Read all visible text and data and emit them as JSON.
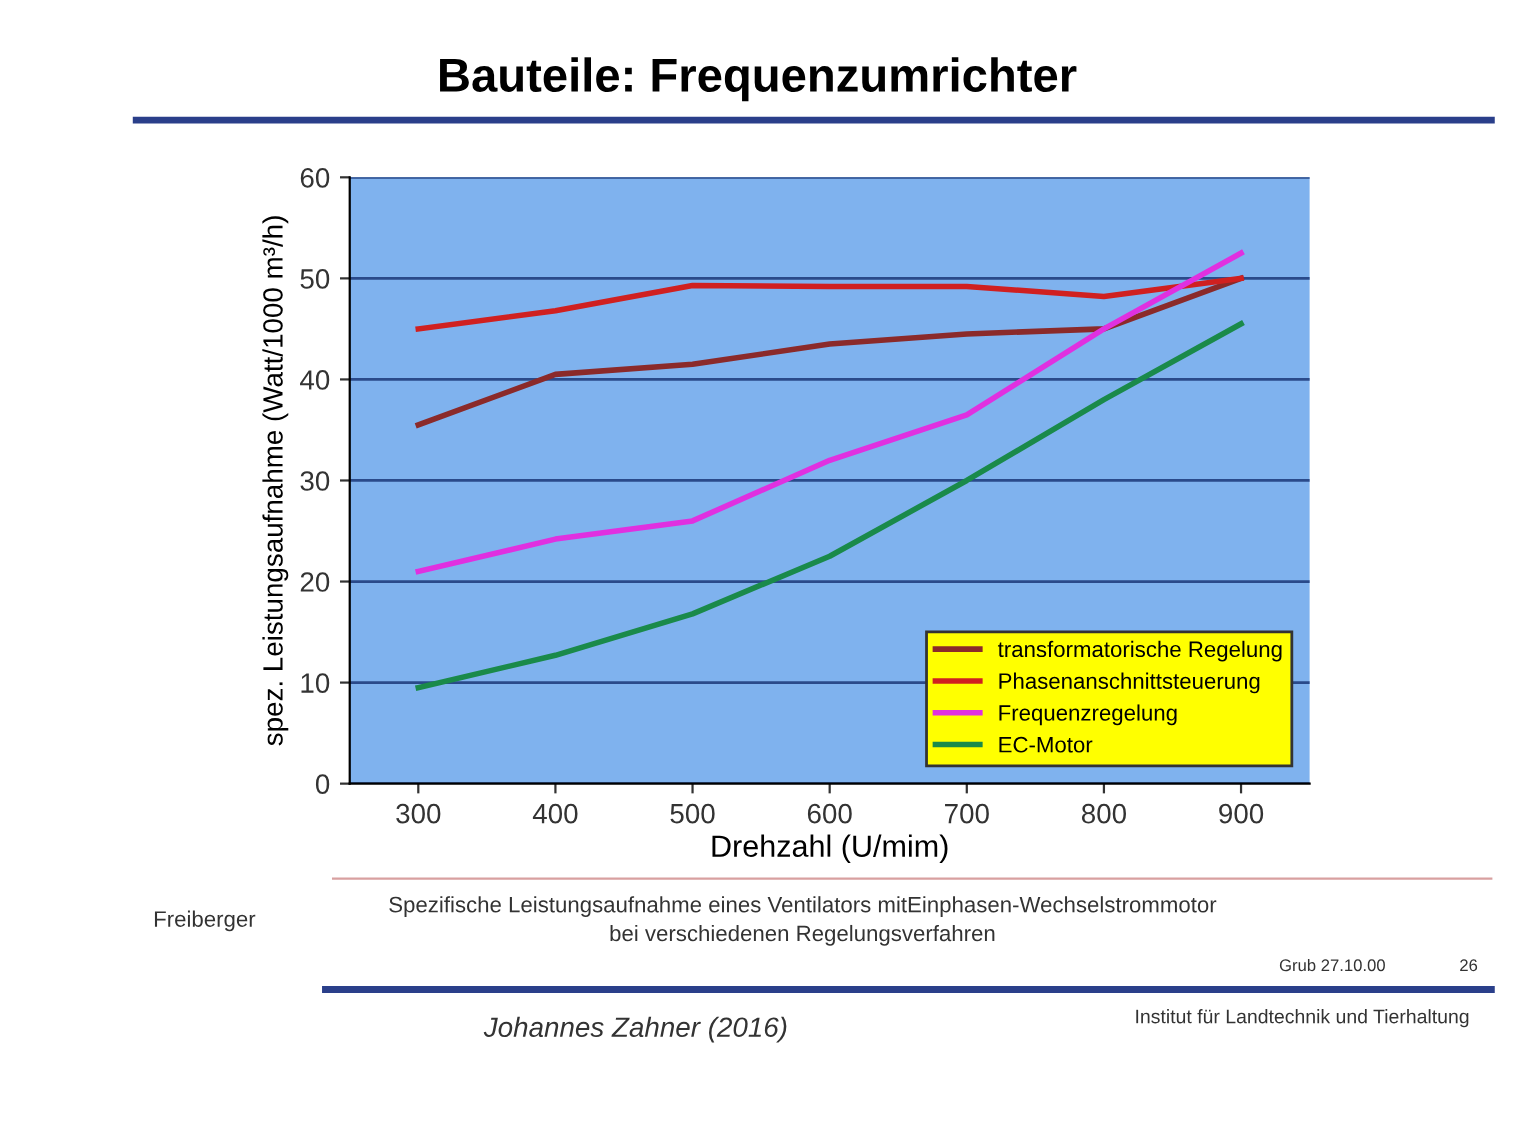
{
  "chart_data": {
    "type": "line",
    "title": "Bauteile: Frequenzumrichter",
    "xlabel": "Drehzahl (U/mim)",
    "ylabel": "spez. Leistungsaufnahme (Watt/1000 m³/h)",
    "x": [
      300,
      400,
      500,
      600,
      700,
      800,
      900
    ],
    "series": [
      {
        "name": "transformatorische Regelung",
        "color": "#8b2a2a",
        "values": [
          35.5,
          40.5,
          41.5,
          43.5,
          44.5,
          45,
          50
        ]
      },
      {
        "name": "Phasenanschnittsteuerung",
        "color": "#d02020",
        "values": [
          45,
          46.8,
          49.3,
          49.2,
          49.2,
          48.2,
          50
        ]
      },
      {
        "name": "Frequenzregelung",
        "color": "#e030e0",
        "values": [
          21,
          24.2,
          26,
          32,
          36.5,
          45,
          52.5
        ]
      },
      {
        "name": "EC-Motor",
        "color": "#1a8a4a",
        "values": [
          9.5,
          12.7,
          16.8,
          22.5,
          30,
          38,
          45.5
        ]
      }
    ],
    "xlim": [
      250,
      950
    ],
    "xticks": [
      300,
      400,
      500,
      600,
      700,
      800,
      900
    ],
    "ylim": [
      0,
      60
    ],
    "yticks": [
      0,
      10,
      20,
      30,
      40,
      50,
      60
    ],
    "grid": "y",
    "legend": "bottom right",
    "marker": "none",
    "line_style": "solid",
    "annotations": [
      "Freiberger",
      "Spezifische Leistungsaufnahme eines Ventilators mitEinphasen-Wechselstrommotor\nbei verschiedenen Regelungsverfahren",
      "Grub 27.10.00",
      "26",
      "Institut für Landtechnik und Tierhaltung",
      "Johannes Zahner (2016)"
    ]
  }
}
